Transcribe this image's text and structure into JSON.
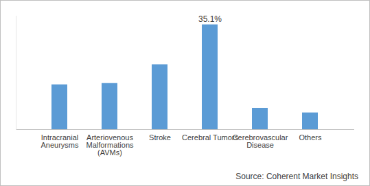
{
  "chart_data": {
    "type": "bar",
    "caption": "Source: Coherent Market Insights",
    "categories": [
      "Intracranial Aneurysms",
      "Arteriovenous Malformations (AVMs)",
      "Stroke",
      "Cerebral Tumors",
      "Cerebrovascular Disease",
      "Others"
    ],
    "values": [
      15.0,
      15.5,
      21.7,
      35.1,
      7.1,
      5.6
    ],
    "value_labels": [
      null,
      null,
      null,
      "35.1%",
      null,
      null
    ],
    "color": "#5b9bd5",
    "ylim": [
      0,
      38
    ],
    "tick_labels": "x",
    "grid": false
  }
}
